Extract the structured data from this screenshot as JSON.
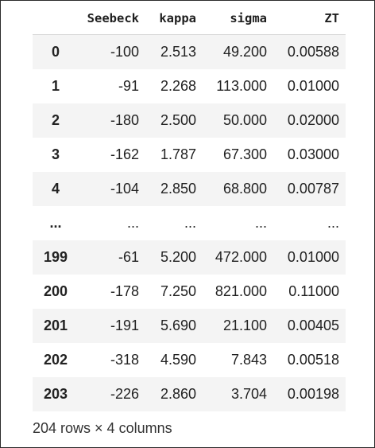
{
  "table": {
    "columns": [
      "Seebeck",
      "kappa",
      "sigma",
      "ZT"
    ],
    "rows": [
      {
        "index": "0",
        "cells": [
          "-100",
          "2.513",
          "49.200",
          "0.00588"
        ]
      },
      {
        "index": "1",
        "cells": [
          "-91",
          "2.268",
          "113.000",
          "0.01000"
        ]
      },
      {
        "index": "2",
        "cells": [
          "-180",
          "2.500",
          "50.000",
          "0.02000"
        ]
      },
      {
        "index": "3",
        "cells": [
          "-162",
          "1.787",
          "67.300",
          "0.03000"
        ]
      },
      {
        "index": "4",
        "cells": [
          "-104",
          "2.850",
          "68.800",
          "0.00787"
        ]
      },
      {
        "index": "...",
        "cells": [
          "...",
          "...",
          "...",
          "..."
        ]
      },
      {
        "index": "199",
        "cells": [
          "-61",
          "5.200",
          "472.000",
          "0.01000"
        ]
      },
      {
        "index": "200",
        "cells": [
          "-178",
          "7.250",
          "821.000",
          "0.11000"
        ]
      },
      {
        "index": "201",
        "cells": [
          "-191",
          "5.690",
          "21.100",
          "0.00405"
        ]
      },
      {
        "index": "202",
        "cells": [
          "-318",
          "4.590",
          "7.843",
          "0.00518"
        ]
      },
      {
        "index": "203",
        "cells": [
          "-226",
          "2.860",
          "3.704",
          "0.00198"
        ]
      }
    ]
  },
  "footer": {
    "shape_text": "204 rows × 4 columns"
  },
  "colors": {
    "stripe": "#f4f4f4",
    "border": "#2b2b2b",
    "text": "#1f1f1f"
  }
}
